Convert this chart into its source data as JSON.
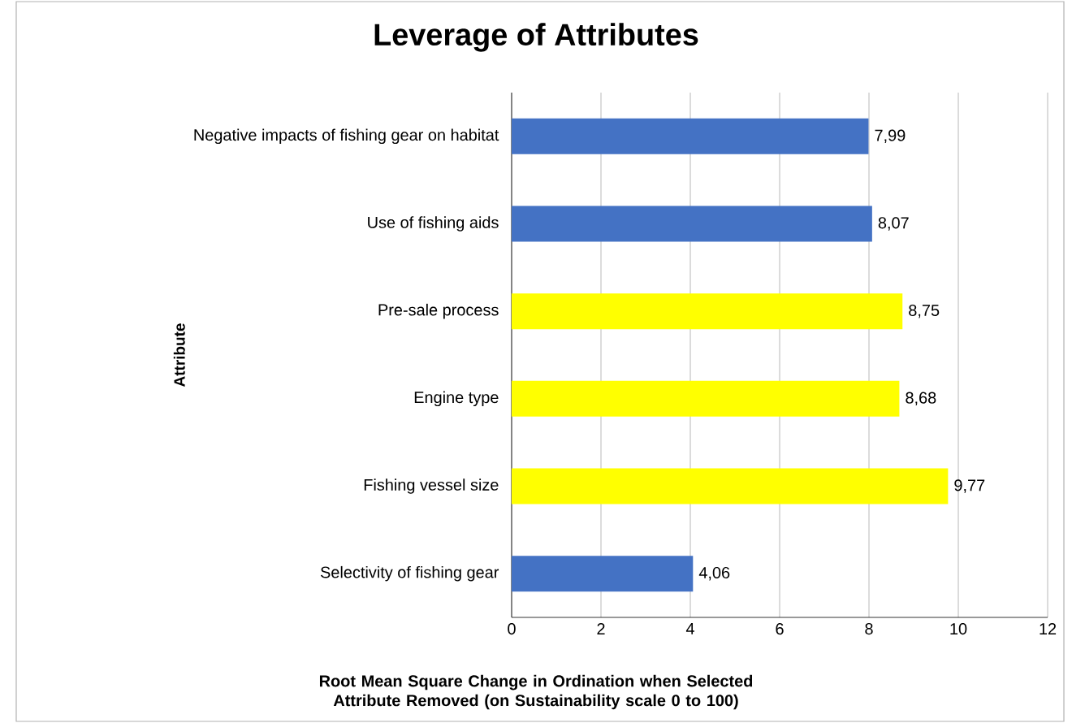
{
  "chart_data": {
    "type": "bar",
    "orientation": "horizontal",
    "title": "Leverage of Attributes",
    "xlabel": "Root Mean Square Change in Ordination when Selected Attribute Removed (on Sustainability scale 0 to 100)",
    "ylabel": "Attribute",
    "categories": [
      "Negative impacts of fishing gear on habitat",
      "Use of fishing aids",
      "Pre-sale process",
      "Engine type",
      "Fishing vessel size",
      "Selectivity of fishing gear"
    ],
    "values": [
      7.99,
      8.07,
      8.75,
      8.68,
      9.77,
      4.06
    ],
    "value_labels": [
      "7,99",
      "8,07",
      "8,75",
      "8,68",
      "9,77",
      "4,06"
    ],
    "colors": [
      "#4472c4",
      "#4472c4",
      "#ffff00",
      "#ffff00",
      "#ffff00",
      "#4472c4"
    ],
    "xlim": [
      0,
      12
    ],
    "xticks": [
      0,
      2,
      4,
      6,
      8,
      10,
      12
    ],
    "grid": "x"
  }
}
